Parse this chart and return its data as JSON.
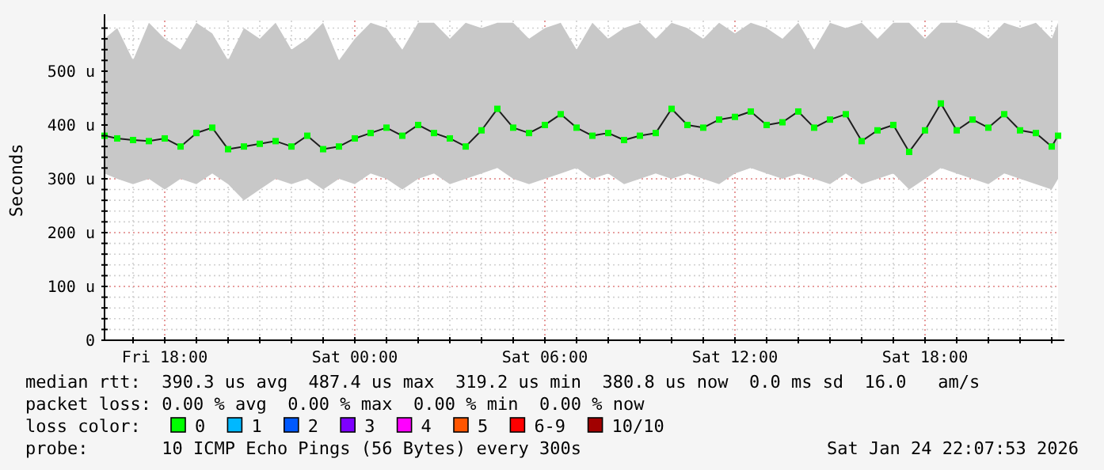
{
  "chart_data": {
    "type": "line",
    "ylabel": "Seconds",
    "legend_title": "loss color:",
    "legend": "bottom",
    "grid": true,
    "marker": "square",
    "line_style": "solid",
    "xlim": [
      "2026-01-23T16:06",
      "2026-01-24T22:12"
    ],
    "xticks": [
      {
        "value": "2026-01-23T17:00",
        "label": null
      },
      {
        "value": "2026-01-23T18:00",
        "label": "Fri 18:00"
      },
      {
        "value": "2026-01-23T19:00",
        "label": null
      },
      {
        "value": "2026-01-23T20:00",
        "label": null
      },
      {
        "value": "2026-01-23T21:00",
        "label": null
      },
      {
        "value": "2026-01-23T22:00",
        "label": null
      },
      {
        "value": "2026-01-23T23:00",
        "label": null
      },
      {
        "value": "2026-01-24T00:00",
        "label": "Sat 00:00"
      },
      {
        "value": "2026-01-24T01:00",
        "label": null
      },
      {
        "value": "2026-01-24T02:00",
        "label": null
      },
      {
        "value": "2026-01-24T03:00",
        "label": null
      },
      {
        "value": "2026-01-24T04:00",
        "label": null
      },
      {
        "value": "2026-01-24T05:00",
        "label": null
      },
      {
        "value": "2026-01-24T06:00",
        "label": "Sat 06:00"
      },
      {
        "value": "2026-01-24T07:00",
        "label": null
      },
      {
        "value": "2026-01-24T08:00",
        "label": null
      },
      {
        "value": "2026-01-24T09:00",
        "label": null
      },
      {
        "value": "2026-01-24T10:00",
        "label": null
      },
      {
        "value": "2026-01-24T11:00",
        "label": null
      },
      {
        "value": "2026-01-24T12:00",
        "label": "Sat 12:00"
      },
      {
        "value": "2026-01-24T13:00",
        "label": null
      },
      {
        "value": "2026-01-24T14:00",
        "label": null
      },
      {
        "value": "2026-01-24T15:00",
        "label": null
      },
      {
        "value": "2026-01-24T16:00",
        "label": null
      },
      {
        "value": "2026-01-24T17:00",
        "label": null
      },
      {
        "value": "2026-01-24T18:00",
        "label": "Sat 18:00"
      },
      {
        "value": "2026-01-24T19:00",
        "label": null
      },
      {
        "value": "2026-01-24T20:00",
        "label": null
      },
      {
        "value": "2026-01-24T21:00",
        "label": null
      },
      {
        "value": "2026-01-24T22:00",
        "label": null
      }
    ],
    "ylim": [
      0,
      594
    ],
    "yticks": [
      {
        "value": 0,
        "label": "0"
      },
      {
        "value": 20,
        "label": null
      },
      {
        "value": 40,
        "label": null
      },
      {
        "value": 60,
        "label": null
      },
      {
        "value": 80,
        "label": null
      },
      {
        "value": 100,
        "label": "100 u"
      },
      {
        "value": 120,
        "label": null
      },
      {
        "value": 140,
        "label": null
      },
      {
        "value": 160,
        "label": null
      },
      {
        "value": 180,
        "label": null
      },
      {
        "value": 200,
        "label": "200 u"
      },
      {
        "value": 220,
        "label": null
      },
      {
        "value": 240,
        "label": null
      },
      {
        "value": 260,
        "label": null
      },
      {
        "value": 280,
        "label": null
      },
      {
        "value": 300,
        "label": "300 u"
      },
      {
        "value": 320,
        "label": null
      },
      {
        "value": 340,
        "label": null
      },
      {
        "value": 360,
        "label": null
      },
      {
        "value": 380,
        "label": null
      },
      {
        "value": 400,
        "label": "400 u"
      },
      {
        "value": 420,
        "label": null
      },
      {
        "value": 440,
        "label": null
      },
      {
        "value": 460,
        "label": null
      },
      {
        "value": 480,
        "label": null
      },
      {
        "value": 500,
        "label": "500 u"
      },
      {
        "value": 520,
        "label": null
      },
      {
        "value": 540,
        "label": null
      },
      {
        "value": 560,
        "label": null
      },
      {
        "value": 580,
        "label": null
      }
    ],
    "x": [
      "2026-01-23T16:06",
      "2026-01-23T16:30",
      "2026-01-23T17:00",
      "2026-01-23T17:30",
      "2026-01-23T18:00",
      "2026-01-23T18:30",
      "2026-01-23T19:00",
      "2026-01-23T19:30",
      "2026-01-23T20:00",
      "2026-01-23T20:30",
      "2026-01-23T21:00",
      "2026-01-23T21:30",
      "2026-01-23T22:00",
      "2026-01-23T22:30",
      "2026-01-23T23:00",
      "2026-01-23T23:30",
      "2026-01-24T00:00",
      "2026-01-24T00:30",
      "2026-01-24T01:00",
      "2026-01-24T01:30",
      "2026-01-24T02:00",
      "2026-01-24T02:30",
      "2026-01-24T03:00",
      "2026-01-24T03:30",
      "2026-01-24T04:00",
      "2026-01-24T04:30",
      "2026-01-24T05:00",
      "2026-01-24T05:30",
      "2026-01-24T06:00",
      "2026-01-24T06:30",
      "2026-01-24T07:00",
      "2026-01-24T07:30",
      "2026-01-24T08:00",
      "2026-01-24T08:30",
      "2026-01-24T09:00",
      "2026-01-24T09:30",
      "2026-01-24T10:00",
      "2026-01-24T10:30",
      "2026-01-24T11:00",
      "2026-01-24T11:30",
      "2026-01-24T12:00",
      "2026-01-24T12:30",
      "2026-01-24T13:00",
      "2026-01-24T13:30",
      "2026-01-24T14:00",
      "2026-01-24T14:30",
      "2026-01-24T15:00",
      "2026-01-24T15:30",
      "2026-01-24T16:00",
      "2026-01-24T16:30",
      "2026-01-24T17:00",
      "2026-01-24T17:30",
      "2026-01-24T18:00",
      "2026-01-24T18:30",
      "2026-01-24T19:00",
      "2026-01-24T19:30",
      "2026-01-24T20:00",
      "2026-01-24T20:30",
      "2026-01-24T21:00",
      "2026-01-24T21:30",
      "2026-01-24T22:00",
      "2026-01-24T22:12"
    ],
    "series": [
      {
        "name": "0",
        "color": "#00ff00",
        "values": [
          380,
          375,
          372,
          370,
          375,
          360,
          385,
          395,
          355,
          360,
          365,
          370,
          360,
          380,
          355,
          360,
          375,
          385,
          395,
          380,
          400,
          385,
          375,
          360,
          390,
          430,
          395,
          385,
          400,
          420,
          395,
          380,
          385,
          372,
          380,
          385,
          430,
          400,
          395,
          410,
          415,
          425,
          400,
          405,
          425,
          395,
          410,
          420,
          370,
          390,
          400,
          350,
          390,
          440,
          390,
          410,
          395,
          420,
          390,
          385,
          360,
          380
        ],
        "lower": [
          310,
          300,
          290,
          300,
          280,
          300,
          290,
          310,
          290,
          260,
          280,
          300,
          290,
          300,
          280,
          300,
          290,
          310,
          300,
          280,
          300,
          310,
          290,
          300,
          310,
          320,
          300,
          290,
          300,
          310,
          320,
          300,
          310,
          290,
          300,
          310,
          300,
          310,
          300,
          290,
          310,
          320,
          310,
          300,
          310,
          300,
          290,
          310,
          290,
          300,
          310,
          280,
          300,
          320,
          310,
          300,
          290,
          310,
          300,
          290,
          280,
          300
        ],
        "upper": [
          560,
          580,
          520,
          590,
          560,
          540,
          590,
          570,
          520,
          580,
          560,
          590,
          540,
          560,
          590,
          520,
          560,
          590,
          580,
          540,
          590,
          590,
          560,
          590,
          580,
          590,
          590,
          560,
          580,
          590,
          540,
          590,
          560,
          580,
          590,
          560,
          590,
          580,
          560,
          590,
          570,
          590,
          580,
          560,
          590,
          540,
          590,
          580,
          590,
          560,
          590,
          590,
          560,
          590,
          590,
          580,
          560,
          590,
          580,
          590,
          560,
          590
        ]
      },
      {
        "name": "1",
        "color": "#00b8ff",
        "values": [
          null,
          null,
          null,
          null,
          null,
          null,
          null,
          null,
          null,
          null,
          null,
          null,
          null,
          null,
          null,
          null,
          null,
          null,
          null,
          null,
          null,
          null,
          null,
          null,
          null,
          null,
          null,
          null,
          null,
          null,
          null,
          null,
          null,
          null,
          null,
          null,
          null,
          null,
          null,
          null,
          null,
          null,
          null,
          null,
          null,
          null,
          null,
          null,
          null,
          null,
          null,
          null,
          null,
          null,
          null,
          null,
          null,
          null,
          null,
          null,
          null,
          null
        ]
      },
      {
        "name": "2",
        "color": "#0059ff",
        "values": [
          null,
          null,
          null,
          null,
          null,
          null,
          null,
          null,
          null,
          null,
          null,
          null,
          null,
          null,
          null,
          null,
          null,
          null,
          null,
          null,
          null,
          null,
          null,
          null,
          null,
          null,
          null,
          null,
          null,
          null,
          null,
          null,
          null,
          null,
          null,
          null,
          null,
          null,
          null,
          null,
          null,
          null,
          null,
          null,
          null,
          null,
          null,
          null,
          null,
          null,
          null,
          null,
          null,
          null,
          null,
          null,
          null,
          null,
          null,
          null,
          null,
          null
        ]
      },
      {
        "name": "3",
        "color": "#7e00ff",
        "values": [
          null,
          null,
          null,
          null,
          null,
          null,
          null,
          null,
          null,
          null,
          null,
          null,
          null,
          null,
          null,
          null,
          null,
          null,
          null,
          null,
          null,
          null,
          null,
          null,
          null,
          null,
          null,
          null,
          null,
          null,
          null,
          null,
          null,
          null,
          null,
          null,
          null,
          null,
          null,
          null,
          null,
          null,
          null,
          null,
          null,
          null,
          null,
          null,
          null,
          null,
          null,
          null,
          null,
          null,
          null,
          null,
          null,
          null,
          null,
          null,
          null,
          null
        ]
      },
      {
        "name": "4",
        "color": "#ff00ff",
        "values": [
          null,
          null,
          null,
          null,
          null,
          null,
          null,
          null,
          null,
          null,
          null,
          null,
          null,
          null,
          null,
          null,
          null,
          null,
          null,
          null,
          null,
          null,
          null,
          null,
          null,
          null,
          null,
          null,
          null,
          null,
          null,
          null,
          null,
          null,
          null,
          null,
          null,
          null,
          null,
          null,
          null,
          null,
          null,
          null,
          null,
          null,
          null,
          null,
          null,
          null,
          null,
          null,
          null,
          null,
          null,
          null,
          null,
          null,
          null,
          null,
          null,
          null
        ]
      },
      {
        "name": "5",
        "color": "#ff5500",
        "values": [
          null,
          null,
          null,
          null,
          null,
          null,
          null,
          null,
          null,
          null,
          null,
          null,
          null,
          null,
          null,
          null,
          null,
          null,
          null,
          null,
          null,
          null,
          null,
          null,
          null,
          null,
          null,
          null,
          null,
          null,
          null,
          null,
          null,
          null,
          null,
          null,
          null,
          null,
          null,
          null,
          null,
          null,
          null,
          null,
          null,
          null,
          null,
          null,
          null,
          null,
          null,
          null,
          null,
          null,
          null,
          null,
          null,
          null,
          null,
          null,
          null,
          null
        ]
      },
      {
        "name": "6-9",
        "color": "#ff0000",
        "values": [
          null,
          null,
          null,
          null,
          null,
          null,
          null,
          null,
          null,
          null,
          null,
          null,
          null,
          null,
          null,
          null,
          null,
          null,
          null,
          null,
          null,
          null,
          null,
          null,
          null,
          null,
          null,
          null,
          null,
          null,
          null,
          null,
          null,
          null,
          null,
          null,
          null,
          null,
          null,
          null,
          null,
          null,
          null,
          null,
          null,
          null,
          null,
          null,
          null,
          null,
          null,
          null,
          null,
          null,
          null,
          null,
          null,
          null,
          null,
          null,
          null,
          null
        ]
      },
      {
        "name": "10/10",
        "color": "#a10000",
        "values": [
          null,
          null,
          null,
          null,
          null,
          null,
          null,
          null,
          null,
          null,
          null,
          null,
          null,
          null,
          null,
          null,
          null,
          null,
          null,
          null,
          null,
          null,
          null,
          null,
          null,
          null,
          null,
          null,
          null,
          null,
          null,
          null,
          null,
          null,
          null,
          null,
          null,
          null,
          null,
          null,
          null,
          null,
          null,
          null,
          null,
          null,
          null,
          null,
          null,
          null,
          null,
          null,
          null,
          null,
          null,
          null,
          null,
          null,
          null,
          null,
          null,
          null
        ]
      }
    ],
    "annotations": [
      "median rtt:  390.3 us avg  487.4 us max  319.2 us min  380.8 us now  0.0 ms sd  16.0   am/s",
      "packet loss: 0.00 % avg  0.00 % max  0.00 % min  0.00 % now",
      "probe:       10 ICMP Echo Pings (56 Bytes) every 300s",
      "Sat Jan 24 22:07:53 2026"
    ]
  }
}
